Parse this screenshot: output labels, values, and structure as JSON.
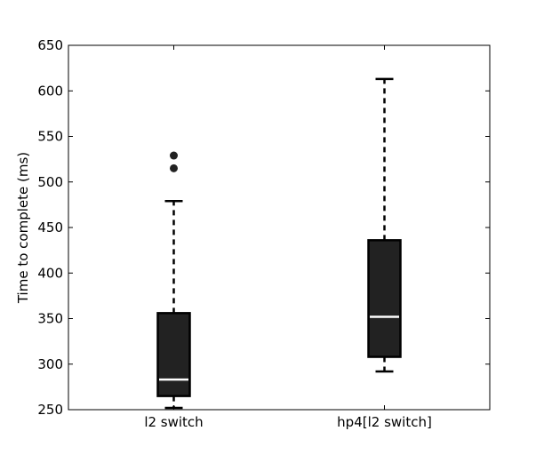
{
  "chart_data": {
    "type": "box",
    "ylabel": "Time to complete (ms)",
    "ylim": [
      250,
      650
    ],
    "yticks": [
      250,
      300,
      350,
      400,
      450,
      500,
      550,
      600,
      650
    ],
    "grid": false,
    "box_fill": "#222222",
    "median_color": "#ffffff",
    "categories": [
      "l2 switch",
      "hp4[l2 switch]"
    ],
    "boxes": [
      {
        "category": "l2 switch",
        "whisker_low": 252,
        "q1": 265,
        "median": 283,
        "q3": 356,
        "whisker_high": 479,
        "outliers": [
          515,
          529
        ]
      },
      {
        "category": "hp4[l2 switch]",
        "whisker_low": 292,
        "q1": 308,
        "median": 352,
        "q3": 436,
        "whisker_high": 613,
        "outliers": []
      }
    ]
  }
}
